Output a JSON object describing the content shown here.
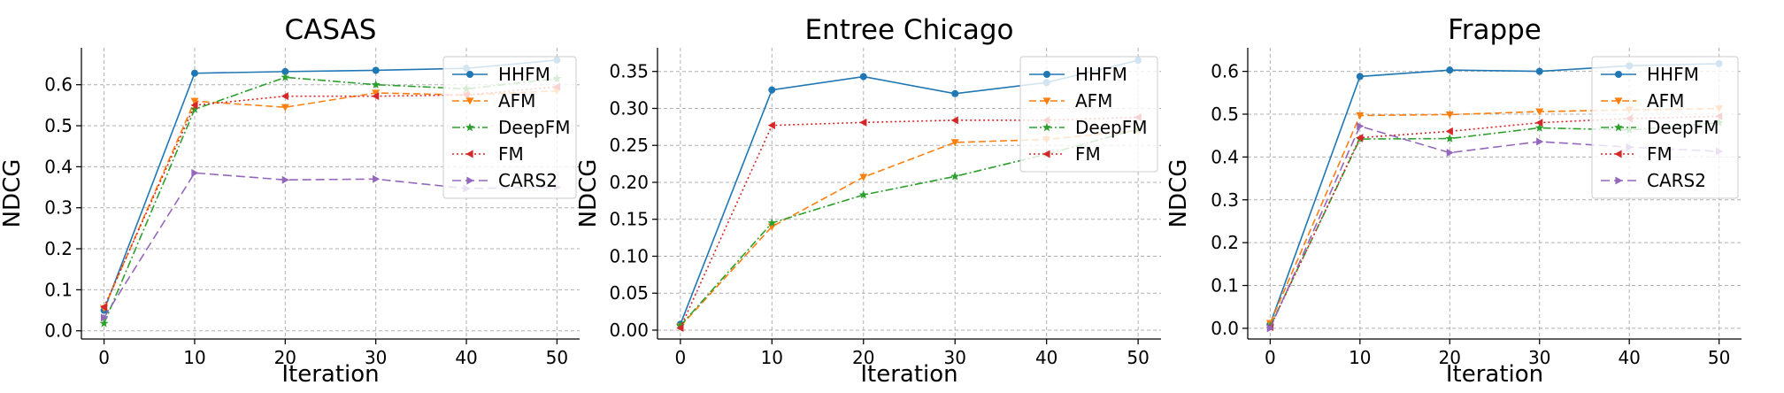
{
  "chart_data": [
    {
      "type": "line",
      "title": "CASAS",
      "xlabel": "Iteration",
      "ylabel": "NDCG",
      "x": [
        0,
        10,
        20,
        30,
        40,
        50
      ],
      "xticks": [
        "0",
        "10",
        "20",
        "30",
        "40",
        "50"
      ],
      "yticks": [
        "0.0",
        "0.1",
        "0.2",
        "0.3",
        "0.4",
        "0.5",
        "0.6"
      ],
      "xlim": [
        -2.5,
        52.5
      ],
      "ylim": [
        -0.02,
        0.69
      ],
      "grid": true,
      "legend_position": "top-right",
      "series": [
        {
          "name": "HHFM",
          "color": "#1f77b4",
          "dash": "solid",
          "marker": "circle",
          "values": [
            0.05,
            0.628,
            0.632,
            0.635,
            0.64,
            0.66
          ]
        },
        {
          "name": "AFM",
          "color": "#ff7f0e",
          "dash": "dashed",
          "marker": "triangle-down",
          "values": [
            0.055,
            0.56,
            0.545,
            0.58,
            0.575,
            0.585
          ]
        },
        {
          "name": "DeepFM",
          "color": "#2ca02c",
          "dash": "dashdot",
          "marker": "star",
          "values": [
            0.018,
            0.54,
            0.618,
            0.6,
            0.59,
            0.615
          ]
        },
        {
          "name": "FM",
          "color": "#d62728",
          "dash": "dotted",
          "marker": "triangle-left",
          "values": [
            0.058,
            0.55,
            0.572,
            0.572,
            0.575,
            0.595
          ]
        },
        {
          "name": "CARS2",
          "color": "#9467bd",
          "dash": "longdash",
          "marker": "triangle-right",
          "values": [
            0.032,
            0.385,
            0.368,
            0.37,
            0.347,
            0.35
          ]
        }
      ]
    },
    {
      "type": "line",
      "title": "Entree Chicago",
      "xlabel": "Iteration",
      "ylabel": "NDCG",
      "x": [
        0,
        10,
        20,
        30,
        40,
        50
      ],
      "xticks": [
        "0",
        "10",
        "20",
        "30",
        "40",
        "50"
      ],
      "yticks": [
        "0.00",
        "0.05",
        "0.10",
        "0.15",
        "0.20",
        "0.25",
        "0.30",
        "0.35"
      ],
      "xlim": [
        -2.5,
        52.5
      ],
      "ylim": [
        -0.012,
        0.382
      ],
      "grid": true,
      "legend_position": "top-right",
      "series": [
        {
          "name": "HHFM",
          "color": "#1f77b4",
          "dash": "solid",
          "marker": "circle",
          "values": [
            0.008,
            0.325,
            0.343,
            0.32,
            0.335,
            0.365
          ]
        },
        {
          "name": "AFM",
          "color": "#ff7f0e",
          "dash": "dashed",
          "marker": "triangle-down",
          "values": [
            0.005,
            0.14,
            0.207,
            0.254,
            0.258,
            0.27
          ]
        },
        {
          "name": "DeepFM",
          "color": "#2ca02c",
          "dash": "dashdot",
          "marker": "star",
          "values": [
            0.006,
            0.145,
            0.183,
            0.208,
            0.238,
            0.272
          ]
        },
        {
          "name": "FM",
          "color": "#d62728",
          "dash": "dotted",
          "marker": "triangle-left",
          "values": [
            0.003,
            0.277,
            0.281,
            0.284,
            0.284,
            0.288
          ]
        }
      ]
    },
    {
      "type": "line",
      "title": "Frappe",
      "xlabel": "Iteration",
      "ylabel": "NDCG",
      "x": [
        0,
        10,
        20,
        30,
        40,
        50
      ],
      "xticks": [
        "0",
        "10",
        "20",
        "30",
        "40",
        "50"
      ],
      "yticks": [
        "0.0",
        "0.1",
        "0.2",
        "0.3",
        "0.4",
        "0.5",
        "0.6"
      ],
      "xlim": [
        -2.5,
        52.5
      ],
      "ylim": [
        -0.025,
        0.655
      ],
      "grid": true,
      "legend_position": "top-right",
      "series": [
        {
          "name": "HHFM",
          "color": "#1f77b4",
          "dash": "solid",
          "marker": "circle",
          "values": [
            0.01,
            0.588,
            0.603,
            0.6,
            0.613,
            0.618
          ]
        },
        {
          "name": "AFM",
          "color": "#ff7f0e",
          "dash": "dashed",
          "marker": "triangle-down",
          "values": [
            0.012,
            0.497,
            0.499,
            0.506,
            0.51,
            0.513
          ]
        },
        {
          "name": "DeepFM",
          "color": "#2ca02c",
          "dash": "dashdot",
          "marker": "star",
          "values": [
            0.005,
            0.442,
            0.443,
            0.468,
            0.463,
            0.48
          ]
        },
        {
          "name": "FM",
          "color": "#d62728",
          "dash": "dotted",
          "marker": "triangle-left",
          "values": [
            0.003,
            0.445,
            0.46,
            0.48,
            0.49,
            0.495
          ]
        },
        {
          "name": "CARS2",
          "color": "#9467bd",
          "dash": "longdash",
          "marker": "triangle-right",
          "values": [
            0.0,
            0.472,
            0.41,
            0.436,
            0.423,
            0.413
          ]
        }
      ]
    }
  ]
}
